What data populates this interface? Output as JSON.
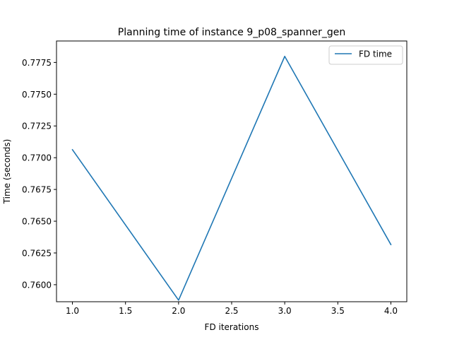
{
  "chart_data": {
    "type": "line",
    "title": "Planning time of instance 9_p08_spanner_gen",
    "xlabel": "FD iterations",
    "ylabel": "Time (seconds)",
    "xlim": [
      0.85,
      4.15
    ],
    "ylim": [
      0.75866,
      0.77919
    ],
    "xticks": [
      1.0,
      1.5,
      2.0,
      2.5,
      3.0,
      3.5,
      4.0
    ],
    "xtick_labels": [
      "1.0",
      "1.5",
      "2.0",
      "2.5",
      "3.0",
      "3.5",
      "4.0"
    ],
    "yticks": [
      0.76,
      0.7625,
      0.765,
      0.7675,
      0.77,
      0.7725,
      0.775,
      0.7775
    ],
    "ytick_labels": [
      "0.7600",
      "0.7625",
      "0.7650",
      "0.7675",
      "0.7700",
      "0.7725",
      "0.7750",
      "0.7775"
    ],
    "grid": false,
    "legend_position": "top-right",
    "series": [
      {
        "name": "FD time",
        "color": "#1f77b4",
        "x": [
          1.0,
          2.0,
          3.0,
          4.0
        ],
        "y": [
          0.77063,
          0.75878,
          0.77798,
          0.76316
        ]
      }
    ]
  }
}
